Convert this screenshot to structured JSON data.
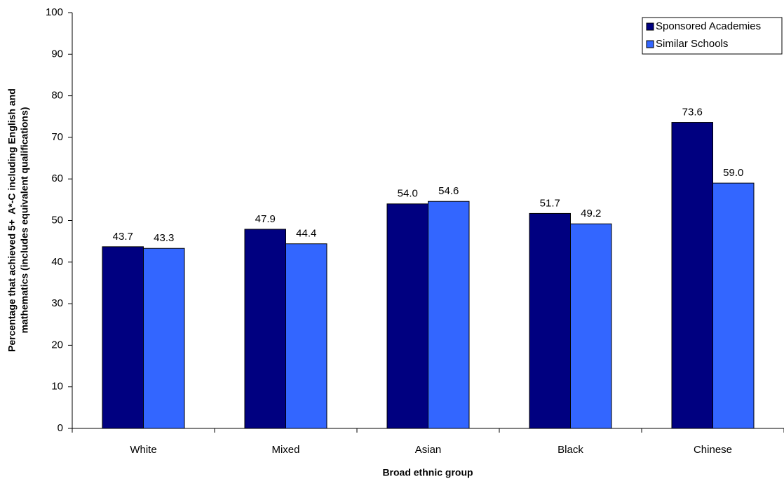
{
  "chart_data": {
    "type": "bar",
    "xlabel": "Broad ethnic group",
    "ylabel": [
      "Percentage that achieved 5+  A*-C including English and",
      "mathematics (includes equivalent qualifications)"
    ],
    "categories": [
      "White",
      "Mixed",
      "Asian",
      "Black",
      "Chinese"
    ],
    "series": [
      {
        "name": "Sponsored Academies",
        "color": "#000080",
        "values": [
          43.7,
          47.9,
          54.0,
          51.7,
          73.6
        ],
        "value_labels": [
          "43.7",
          "47.9",
          "54.0",
          "51.7",
          "73.6"
        ]
      },
      {
        "name": "Similar Schools",
        "color": "#3366ff",
        "values": [
          43.3,
          44.4,
          54.6,
          49.2,
          59.0
        ],
        "value_labels": [
          "43.3",
          "44.4",
          "54.6",
          "49.2",
          "59.0"
        ]
      }
    ],
    "ylim": [
      0,
      100
    ],
    "yticks": [
      0,
      10,
      20,
      30,
      40,
      50,
      60,
      70,
      80,
      90,
      100
    ],
    "grid": false,
    "legend": "top-right"
  }
}
